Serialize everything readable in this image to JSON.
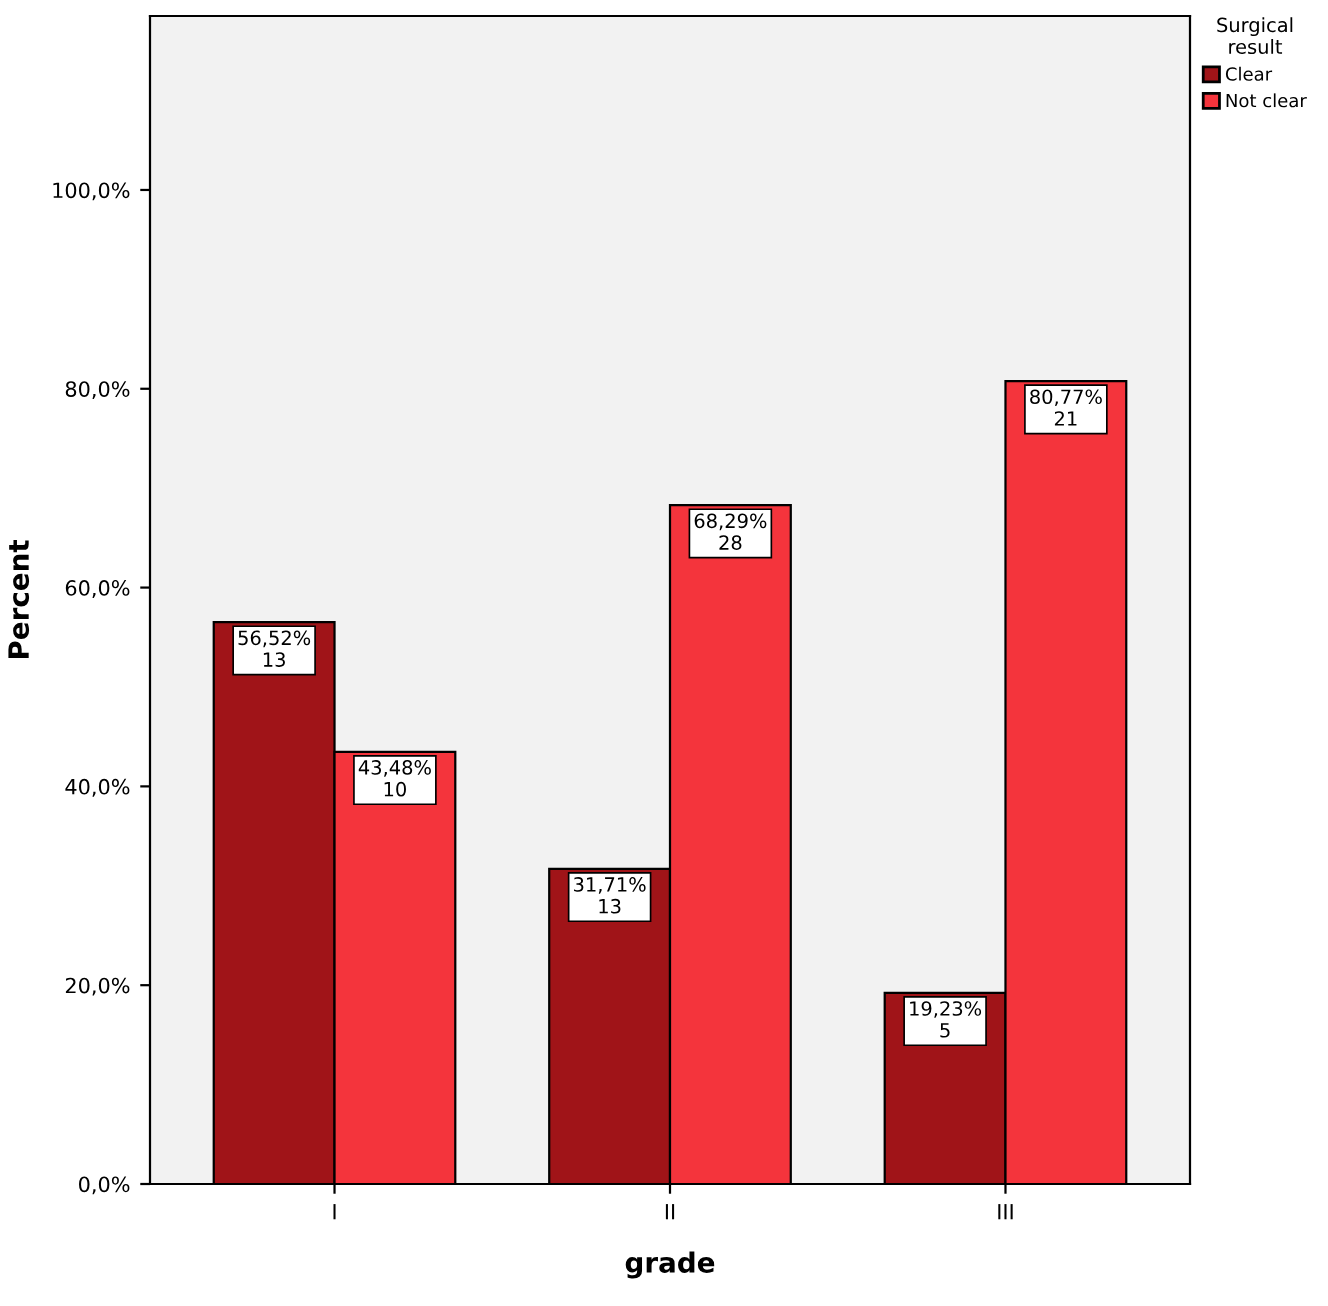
{
  "chart_data": {
    "type": "bar",
    "xlabel": "grade",
    "ylabel": "Percent",
    "legend_title": "Surgical\nresult",
    "legend": "top right",
    "categories": [
      "I",
      "II",
      "III"
    ],
    "series": [
      {
        "name": "Clear",
        "color": "#a01418",
        "values": [
          56.52,
          31.71,
          19.23
        ],
        "value_labels": [
          "56,52%\n13",
          "31,71%\n13",
          "19,23%\n5"
        ]
      },
      {
        "name": "Not clear",
        "color": "#f4343c",
        "values": [
          43.48,
          68.29,
          80.77
        ],
        "value_labels": [
          "43,48%\n10",
          "68,29%\n28",
          "80,77%\n21"
        ]
      }
    ],
    "ylim": [
      0,
      117.5
    ],
    "yticks": [
      {
        "value": 0,
        "label": "0,0%"
      },
      {
        "value": 20,
        "label": "20,0%"
      },
      {
        "value": 40,
        "label": "40,0%"
      },
      {
        "value": 60,
        "label": "60,0%"
      },
      {
        "value": 80,
        "label": "80,0%"
      },
      {
        "value": 100,
        "label": "100,0%"
      }
    ],
    "grid": false
  }
}
